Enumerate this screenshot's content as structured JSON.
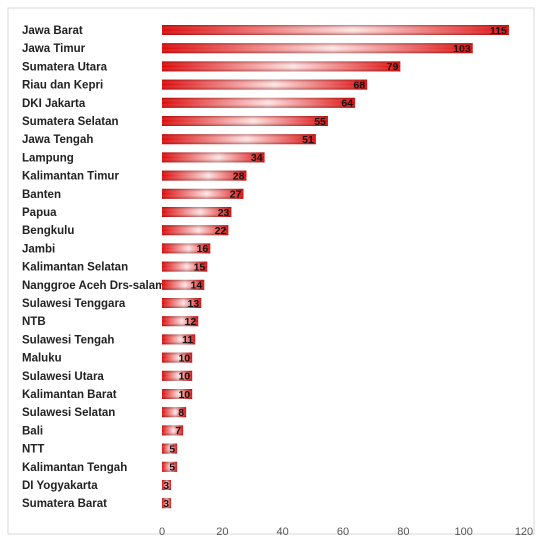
{
  "chart_data": {
    "type": "bar",
    "orientation": "horizontal",
    "categories": [
      "Jawa Barat",
      "Jawa Timur",
      "Sumatera Utara",
      "Riau dan Kepri",
      "DKI Jakarta",
      "Sumatera Selatan",
      "Jawa Tengah",
      "Lampung",
      "Kalimantan Timur",
      "Banten",
      "Papua",
      "Bengkulu",
      "Jambi",
      "Kalimantan Selatan",
      "Nanggroe Aceh Drs-salam",
      "Sulawesi Tenggara",
      "NTB",
      "Sulawesi Tengah",
      "Maluku",
      "Sulawesi Utara",
      "Kalimantan Barat",
      "Sulawesi Selatan",
      "Bali",
      "NTT",
      "Kalimantan Tengah",
      "DI Yogyakarta",
      "Sumatera Barat"
    ],
    "values": [
      115,
      103,
      79,
      68,
      64,
      55,
      51,
      34,
      28,
      27,
      23,
      22,
      16,
      15,
      14,
      13,
      12,
      11,
      10,
      10,
      10,
      8,
      7,
      5,
      5,
      3,
      3
    ],
    "color": "#e00000",
    "xlim": [
      0,
      120
    ],
    "xticks": [
      0,
      20,
      40,
      60,
      80,
      100,
      120
    ]
  }
}
